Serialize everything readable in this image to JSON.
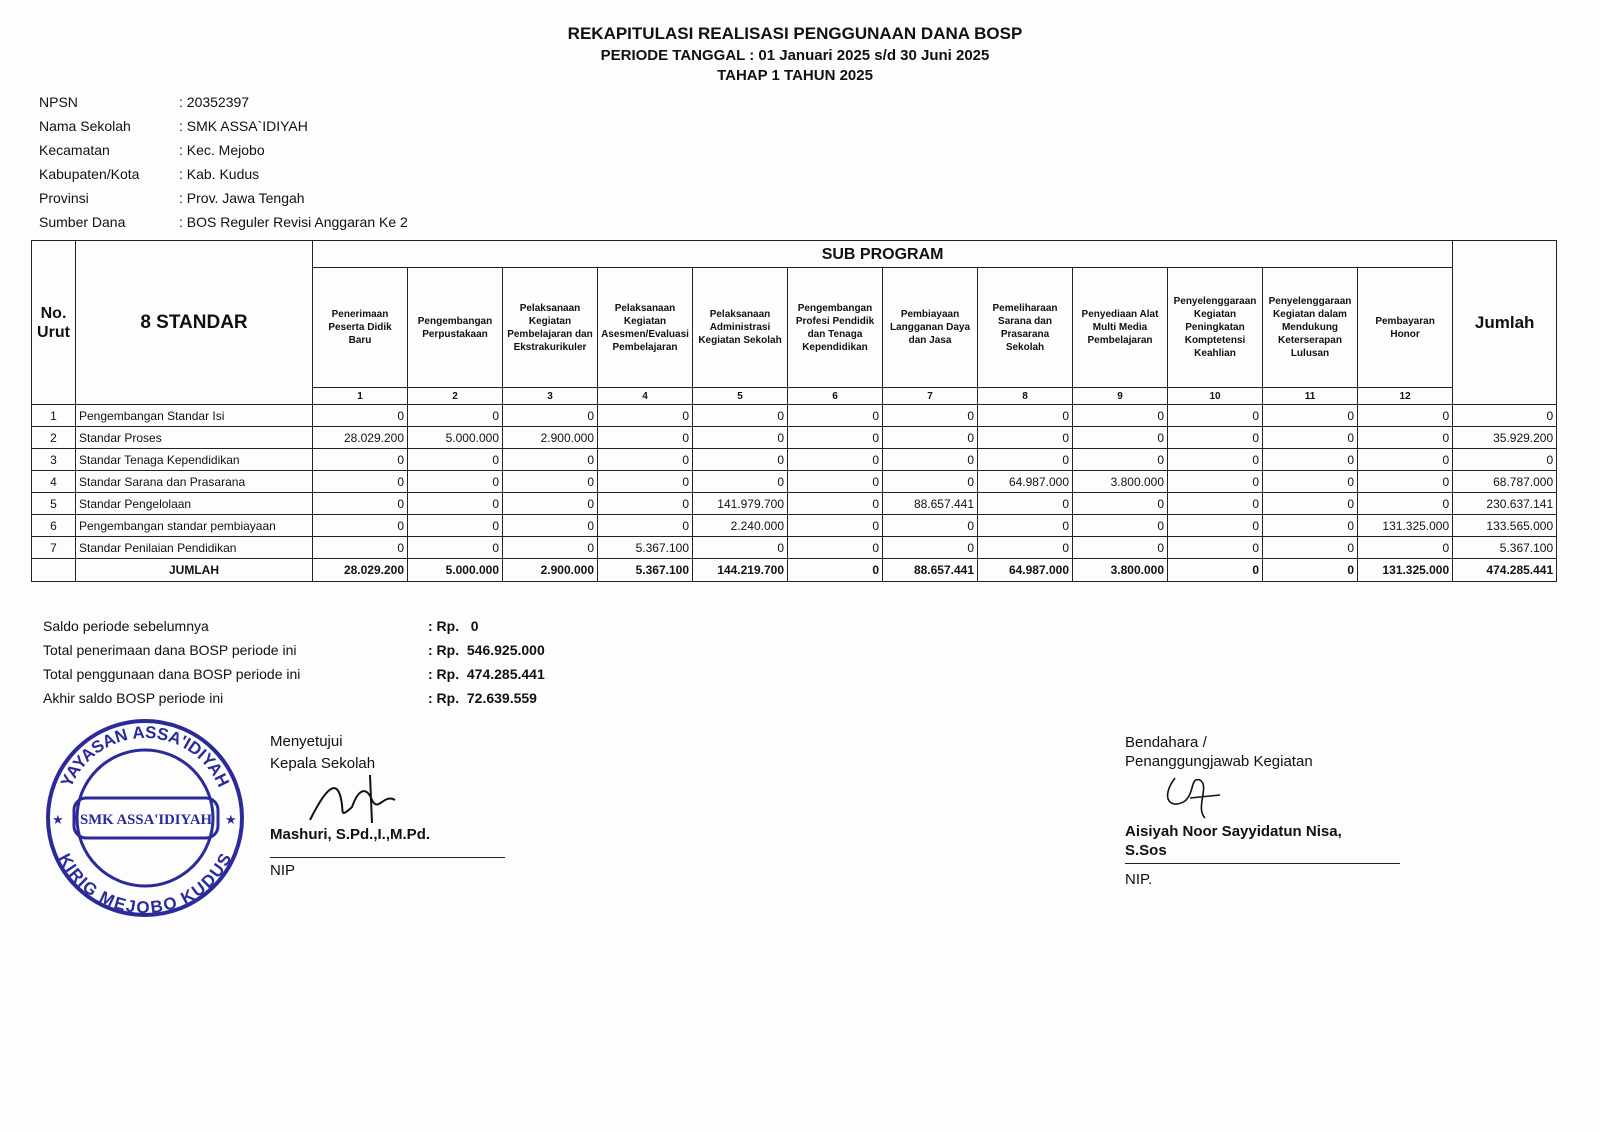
{
  "header": {
    "title": "REKAPITULASI REALISASI PENGGUNAAN DANA BOSP",
    "period": "PERIODE TANGGAL : 01 Januari 2025 s/d 30 Juni 2025",
    "stage": "TAHAP 1 TAHUN 2025"
  },
  "info": [
    {
      "label": "NPSN",
      "value": ": 20352397"
    },
    {
      "label": "Nama Sekolah",
      "value": ": SMK ASSA`IDIYAH"
    },
    {
      "label": "Kecamatan",
      "value": ": Kec. Mejobo"
    },
    {
      "label": "Kabupaten/Kota",
      "value": ": Kab. Kudus"
    },
    {
      "label": "Provinsi",
      "value": ": Prov. Jawa Tengah"
    },
    {
      "label": "Sumber Dana",
      "value": ": BOS Reguler Revisi Anggaran Ke 2"
    }
  ],
  "table": {
    "no_header": "No. Urut",
    "standar_header": "8 STANDAR",
    "sub_program": "SUB PROGRAM",
    "jumlah_header": "Jumlah",
    "columns": [
      {
        "label": "Penerimaan Peserta Didik Baru",
        "no": "1"
      },
      {
        "label": "Pengembangan Perpustakaan",
        "no": "2"
      },
      {
        "label": "Pelaksanaan Kegiatan Pembelajaran dan Ekstrakurikuler",
        "no": "3"
      },
      {
        "label": "Pelaksanaan Kegiatan Asesmen/Evaluasi Pembelajaran",
        "no": "4"
      },
      {
        "label": "Pelaksanaan Administrasi Kegiatan Sekolah",
        "no": "5"
      },
      {
        "label": "Pengembangan Profesi Pendidik dan Tenaga Kependidikan",
        "no": "6"
      },
      {
        "label": "Pembiayaan Langganan Daya dan Jasa",
        "no": "7"
      },
      {
        "label": "Pemeliharaan Sarana dan Prasarana Sekolah",
        "no": "8"
      },
      {
        "label": "Penyediaan Alat Multi Media Pembelajaran",
        "no": "9"
      },
      {
        "label": "Penyelenggaraan Kegiatan Peningkatan Komptetensi Keahlian",
        "no": "10"
      },
      {
        "label": "Penyelenggaraan Kegiatan dalam Mendukung Keterserapan Lulusan",
        "no": "11"
      },
      {
        "label": "Pembayaran Honor",
        "no": "12"
      }
    ],
    "rows": [
      {
        "no": "1",
        "name": "Pengembangan Standar Isi",
        "values": [
          "0",
          "0",
          "0",
          "0",
          "0",
          "0",
          "0",
          "0",
          "0",
          "0",
          "0",
          "0"
        ],
        "total": "0"
      },
      {
        "no": "2",
        "name": "Standar Proses",
        "values": [
          "28.029.200",
          "5.000.000",
          "2.900.000",
          "0",
          "0",
          "0",
          "0",
          "0",
          "0",
          "0",
          "0",
          "0"
        ],
        "total": "35.929.200"
      },
      {
        "no": "3",
        "name": "Standar Tenaga Kependidikan",
        "values": [
          "0",
          "0",
          "0",
          "0",
          "0",
          "0",
          "0",
          "0",
          "0",
          "0",
          "0",
          "0"
        ],
        "total": "0"
      },
      {
        "no": "4",
        "name": "Standar Sarana dan Prasarana",
        "values": [
          "0",
          "0",
          "0",
          "0",
          "0",
          "0",
          "0",
          "64.987.000",
          "3.800.000",
          "0",
          "0",
          "0"
        ],
        "total": "68.787.000"
      },
      {
        "no": "5",
        "name": "Standar Pengelolaan",
        "values": [
          "0",
          "0",
          "0",
          "0",
          "141.979.700",
          "0",
          "88.657.441",
          "0",
          "0",
          "0",
          "0",
          "0"
        ],
        "total": "230.637.141"
      },
      {
        "no": "6",
        "name": "Pengembangan standar pembiayaan",
        "values": [
          "0",
          "0",
          "0",
          "0",
          "2.240.000",
          "0",
          "0",
          "0",
          "0",
          "0",
          "0",
          "131.325.000"
        ],
        "total": "133.565.000"
      },
      {
        "no": "7",
        "name": "Standar Penilaian Pendidikan",
        "values": [
          "0",
          "0",
          "0",
          "5.367.100",
          "0",
          "0",
          "0",
          "0",
          "0",
          "0",
          "0",
          "0"
        ],
        "total": "5.367.100"
      }
    ],
    "total_row": {
      "label": "JUMLAH",
      "values": [
        "28.029.200",
        "5.000.000",
        "2.900.000",
        "5.367.100",
        "144.219.700",
        "0",
        "88.657.441",
        "64.987.000",
        "3.800.000",
        "0",
        "0",
        "131.325.000"
      ],
      "total": "474.285.441"
    }
  },
  "summary": [
    {
      "label": "Saldo periode sebelumnya",
      "value": ": Rp.   0"
    },
    {
      "label": "Total penerimaan dana BOSP periode ini",
      "value": ": Rp.  546.925.000"
    },
    {
      "label": "Total penggunaan dana BOSP periode ini",
      "value": ": Rp.  474.285.441"
    },
    {
      "label": "Akhir saldo BOSP periode ini",
      "value": ": Rp.  72.639.559"
    }
  ],
  "sign_left": {
    "line1": "Menyetujui",
    "line2": "Kepala Sekolah",
    "name": "Mashuri, S.Pd.,I.,M.Pd.",
    "nip": "NIP"
  },
  "sign_right": {
    "line1": "Bendahara /",
    "line2": "Penanggungjawab Kegiatan",
    "name1": "Aisiyah Noor Sayyidatun Nisa,",
    "name2": "S.Sos",
    "nip": "NIP."
  },
  "stamp": {
    "outer": "YAYASAN ASSA'IDIYAH",
    "bottom": "KIRIG MEJOBO KUDUS",
    "center": "SMK ASSA'IDIYAH",
    "color": "#2a2a9a"
  }
}
